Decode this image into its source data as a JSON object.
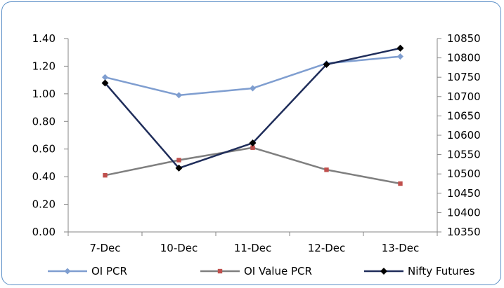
{
  "chart_data": {
    "type": "line",
    "categories": [
      "7-Dec",
      "10-Dec",
      "11-Dec",
      "12-Dec",
      "13-Dec"
    ],
    "series": [
      {
        "name": "OI PCR",
        "axis": "left",
        "color": "#7f9ed0",
        "marker": "diamond",
        "values": [
          1.12,
          0.99,
          1.04,
          1.22,
          1.27
        ]
      },
      {
        "name": "OI Value PCR",
        "axis": "left",
        "color": "#7f7f7f",
        "marker": "square",
        "markerColor": "#c0504d",
        "values": [
          0.41,
          0.52,
          0.61,
          0.45,
          0.35
        ]
      },
      {
        "name": "Nifty Futures",
        "axis": "right",
        "color": "#1f2d5a",
        "marker": "diamond",
        "markerColor": "#000000",
        "values": [
          10735,
          10515,
          10580,
          10783,
          10825
        ]
      }
    ],
    "y_left": {
      "min": 0,
      "max": 1.4,
      "step": 0.2,
      "tick_labels": [
        "0.00",
        "0.20",
        "0.40",
        "0.60",
        "0.80",
        "1.00",
        "1.20",
        "1.40"
      ]
    },
    "y_right": {
      "min": 10350,
      "max": 10850,
      "step": 50,
      "tick_labels": [
        "10350",
        "10400",
        "10450",
        "10500",
        "10550",
        "10600",
        "10650",
        "10700",
        "10750",
        "10800",
        "10850"
      ]
    },
    "title": "",
    "xlabel": "",
    "ylabel": "",
    "grid": false,
    "legend_position": "bottom"
  }
}
